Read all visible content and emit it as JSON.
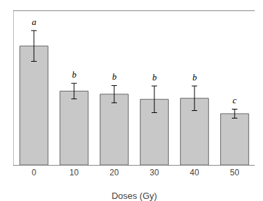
{
  "chart_data": {
    "type": "bar",
    "xlabel": "Doses (Gy)",
    "categories": [
      "0",
      "10",
      "20",
      "30",
      "40",
      "50"
    ],
    "values": [
      5.8,
      3.6,
      3.45,
      3.2,
      3.25,
      2.5
    ],
    "errors": [
      0.75,
      0.38,
      0.42,
      0.65,
      0.6,
      0.22
    ],
    "annotations": [
      "a",
      "b",
      "b",
      "b",
      "b",
      "c"
    ],
    "color": "#c8c8c8",
    "ylim": [
      0,
      7.5
    ],
    "yticks": [],
    "tick_labels": "x",
    "grid": false
  }
}
